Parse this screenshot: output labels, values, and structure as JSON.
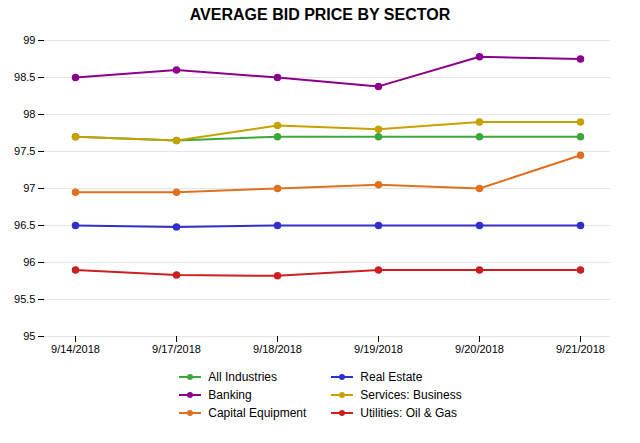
{
  "chart_data": {
    "type": "line",
    "title": "AVERAGE BID PRICE BY SECTOR",
    "categories": [
      "9/14/2018",
      "9/17/2018",
      "9/18/2018",
      "9/19/2018",
      "9/20/2018",
      "9/21/2018"
    ],
    "series": [
      {
        "name": "All Industries",
        "color": "#3CA83C",
        "marker": "circle",
        "values": [
          97.7,
          97.65,
          97.7,
          97.7,
          97.7,
          97.7
        ]
      },
      {
        "name": "Banking",
        "color": "#8B008B",
        "marker": "circle",
        "values": [
          98.5,
          98.6,
          98.5,
          98.38,
          98.78,
          98.75
        ]
      },
      {
        "name": "Capital Equipment",
        "color": "#E07020",
        "marker": "circle",
        "values": [
          96.95,
          96.95,
          97.0,
          97.05,
          97.0,
          97.45
        ]
      },
      {
        "name": "Real Estate",
        "color": "#3030CC",
        "marker": "circle",
        "values": [
          96.5,
          96.48,
          96.5,
          96.5,
          96.5,
          96.5
        ]
      },
      {
        "name": "Services: Business",
        "color": "#C8A000",
        "marker": "circle",
        "values": [
          97.7,
          97.65,
          97.85,
          97.8,
          97.9,
          97.9
        ]
      },
      {
        "name": "Utilities: Oil & Gas",
        "color": "#CC2020",
        "marker": "circle",
        "values": [
          95.9,
          95.83,
          95.82,
          95.9,
          95.9,
          95.9
        ]
      }
    ],
    "ylim": [
      95,
      99
    ],
    "yticks": [
      95,
      95.5,
      96,
      96.5,
      97,
      97.5,
      98,
      98.5,
      99
    ],
    "grid": true,
    "legend": "bottom"
  }
}
